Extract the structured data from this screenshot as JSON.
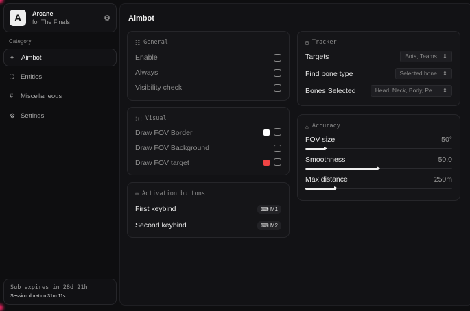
{
  "brand": {
    "name": "Arcane",
    "subtitle": "for The Finals",
    "logo_letter": "A"
  },
  "sidebar": {
    "category_label": "Category",
    "items": [
      {
        "label": "Aimbot",
        "icon": "crosshair-icon",
        "active": true
      },
      {
        "label": "Entities",
        "icon": "users-icon"
      },
      {
        "label": "Miscellaneous",
        "icon": "grid-icon"
      },
      {
        "label": "Settings",
        "icon": "gear-icon"
      }
    ],
    "subscription": "Sub expires in 28d 21h",
    "session": "Session duration 31m 11s"
  },
  "main": {
    "title": "Aimbot",
    "general": {
      "title": "General",
      "rows": [
        {
          "label": "Enable",
          "checked": false
        },
        {
          "label": "Always",
          "checked": false
        },
        {
          "label": "Visibility check",
          "checked": false
        }
      ]
    },
    "visual": {
      "title": "Visual",
      "rows": [
        {
          "label": "Draw FOV Border",
          "color": "#ffffff",
          "checked": false
        },
        {
          "label": "Draw FOV Background",
          "checked": false
        },
        {
          "label": "Draw FOV target",
          "color": "#f04444",
          "checked": false
        }
      ]
    },
    "activation": {
      "title": "Activation buttons",
      "rows": [
        {
          "label": "First keybind",
          "key": "M1"
        },
        {
          "label": "Second keybind",
          "key": "M2"
        }
      ]
    },
    "tracker": {
      "title": "Tracker",
      "rows": [
        {
          "label": "Targets",
          "value": "Bots, Teams"
        },
        {
          "label": "Find bone type",
          "value": "Selected bone"
        },
        {
          "label": "Bones Selected",
          "value": "Head, Neck, Body, Pe..."
        }
      ]
    },
    "accuracy": {
      "title": "Accuracy",
      "sliders": [
        {
          "label": "FOV size",
          "value": "50°",
          "fraction": 0.14
        },
        {
          "label": "Smoothness",
          "value": "50.0",
          "fraction": 0.5
        },
        {
          "label": "Max distance",
          "value": "250m",
          "fraction": 0.21
        }
      ]
    }
  }
}
